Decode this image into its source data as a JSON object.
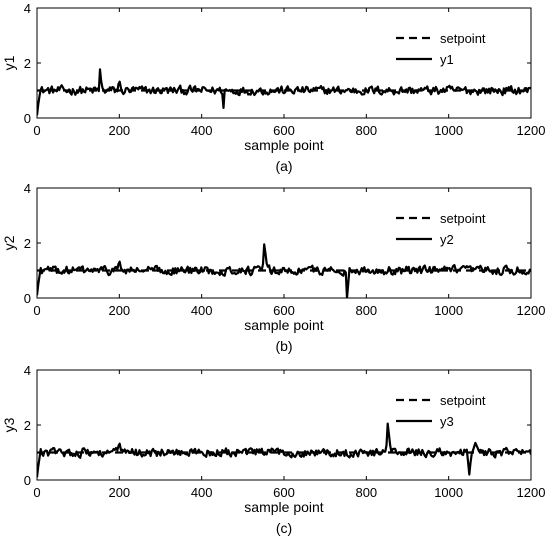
{
  "chart_data": [
    {
      "type": "line",
      "caption": "(a)",
      "xlabel": "sample point",
      "ylabel": "y1",
      "xlim": [
        0,
        1200
      ],
      "ylim": [
        0,
        4
      ],
      "xticks": [
        "0",
        "200",
        "400",
        "600",
        "800",
        "1000",
        "1200"
      ],
      "yticks": [
        "0",
        "2",
        "4"
      ],
      "legend_position": "top-right",
      "grid": false,
      "series": [
        {
          "name": "setpoint",
          "style": "dashed",
          "x": [
            0,
            1200
          ],
          "y": [
            1,
            1
          ]
        },
        {
          "name": "y1",
          "style": "solid",
          "base": 1.0,
          "noise_amp": 0.22,
          "start_value": 0.1,
          "x": [
            0,
            4,
            8,
            150,
            152,
            155,
            158,
            195,
            200,
            205,
            450,
            451,
            452,
            455,
            1200
          ],
          "y": [
            0.1,
            0.6,
            1.0,
            1.0,
            1.9,
            1.5,
            1.0,
            1.0,
            1.4,
            1.0,
            1.0,
            0.05,
            0.05,
            1.0,
            1.0
          ]
        }
      ]
    },
    {
      "type": "line",
      "caption": "(b)",
      "xlabel": "sample point",
      "ylabel": "y2",
      "xlim": [
        0,
        1200
      ],
      "ylim": [
        0,
        4
      ],
      "xticks": [
        "0",
        "200",
        "400",
        "600",
        "800",
        "1000",
        "1200"
      ],
      "yticks": [
        "0",
        "2",
        "4"
      ],
      "legend_position": "top-right",
      "grid": false,
      "series": [
        {
          "name": "setpoint",
          "style": "dashed",
          "x": [
            0,
            1200
          ],
          "y": [
            1,
            1
          ]
        },
        {
          "name": "y2",
          "style": "solid",
          "base": 1.0,
          "noise_amp": 0.22,
          "start_value": 0.1,
          "x": [
            0,
            4,
            8,
            195,
            200,
            205,
            548,
            552,
            556,
            560,
            750,
            752,
            754,
            758,
            1200
          ],
          "y": [
            0.1,
            0.6,
            1.0,
            1.0,
            1.4,
            1.0,
            1.0,
            1.95,
            1.5,
            1.0,
            1.0,
            0.0,
            0.0,
            1.0,
            1.0
          ]
        }
      ]
    },
    {
      "type": "line",
      "caption": "(c)",
      "xlabel": "sample point",
      "ylabel": "y3",
      "xlim": [
        0,
        1200
      ],
      "ylim": [
        0,
        4
      ],
      "xticks": [
        "0",
        "200",
        "400",
        "600",
        "800",
        "1000",
        "1200"
      ],
      "yticks": [
        "0",
        "2",
        "4"
      ],
      "legend_position": "top-right",
      "grid": false,
      "series": [
        {
          "name": "setpoint",
          "style": "dashed",
          "x": [
            0,
            1200
          ],
          "y": [
            1,
            1
          ]
        },
        {
          "name": "y3",
          "style": "solid",
          "base": 1.0,
          "noise_amp": 0.22,
          "start_value": 0.1,
          "x": [
            0,
            4,
            8,
            195,
            200,
            205,
            848,
            852,
            856,
            860,
            1045,
            1050,
            1055,
            1065,
            1075,
            1200
          ],
          "y": [
            0.1,
            0.6,
            1.0,
            1.0,
            1.4,
            1.0,
            1.0,
            2.05,
            1.5,
            1.0,
            1.0,
            0.2,
            0.9,
            1.35,
            1.0,
            1.0
          ]
        }
      ]
    }
  ]
}
